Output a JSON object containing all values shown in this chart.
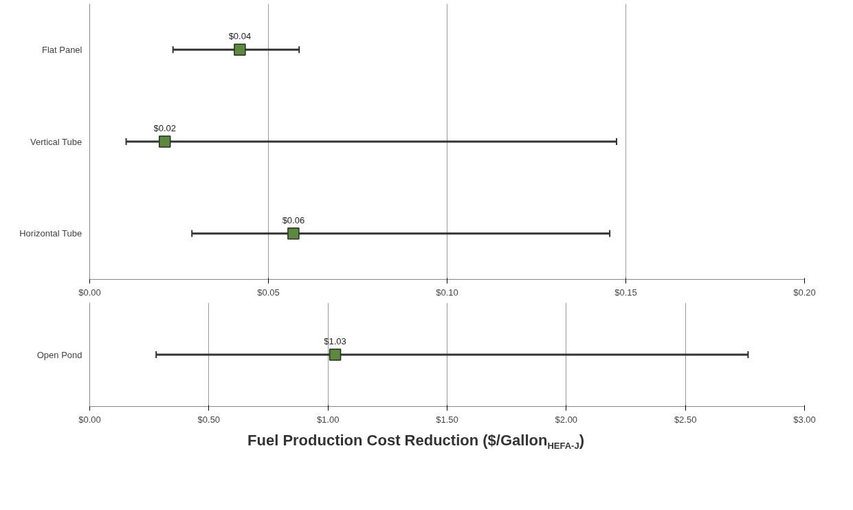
{
  "chart_data": [
    {
      "type": "scatter",
      "orientation": "horizontal",
      "categories": [
        "Flat Panel",
        "Vertical Tube",
        "Horizontal Tube"
      ],
      "series": [
        {
          "color": "#5a8a3a",
          "values": [
            0.042,
            0.021,
            0.057
          ],
          "errors": [
            [
              0.0233,
              0.0586
            ],
            [
              0.0102,
              0.1474
            ],
            [
              0.0286,
              0.1455
            ]
          ],
          "value_labels": [
            "$0.04",
            "$0.02",
            "$0.06"
          ]
        }
      ],
      "xlim": [
        0,
        0.2
      ],
      "xticks": [
        {
          "value": 0,
          "label": "$0.00"
        },
        {
          "value": 0.05,
          "label": "$0.05"
        },
        {
          "value": 0.1,
          "label": "$0.10"
        },
        {
          "value": 0.15,
          "label": "$0.15"
        },
        {
          "value": 0.2,
          "label": "$0.20"
        }
      ],
      "grid": "x",
      "marker": "square"
    },
    {
      "type": "scatter",
      "orientation": "horizontal",
      "categories": [
        "Open Pond"
      ],
      "series": [
        {
          "color": "#5a8a3a",
          "values": [
            1.03
          ],
          "errors": [
            [
              0.279,
              2.763
            ]
          ],
          "value_labels": [
            "$1.03"
          ]
        }
      ],
      "xlim": [
        0,
        3
      ],
      "xticks": [
        {
          "value": 0,
          "label": "$0.00"
        },
        {
          "value": 0.5,
          "label": "$0.50"
        },
        {
          "value": 1,
          "label": "$1.00"
        },
        {
          "value": 1.5,
          "label": "$1.50"
        },
        {
          "value": 2,
          "label": "$2.00"
        },
        {
          "value": 2.5,
          "label": "$2.50"
        },
        {
          "value": 3,
          "label": "$3.00"
        }
      ],
      "xlabel": "Fuel Production Cost Reduction  ($/Gallon$_{HEFA-J}$)",
      "grid": "x",
      "marker": "square"
    }
  ]
}
